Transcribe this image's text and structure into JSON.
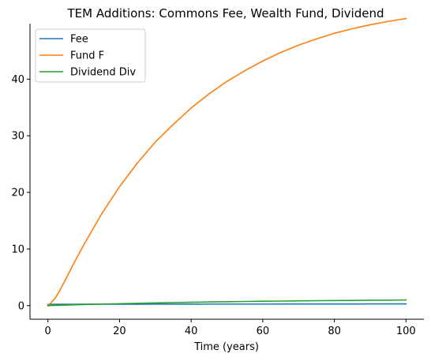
{
  "chart_data": {
    "type": "line",
    "title": "TEM Additions: Commons Fee, Wealth Fund, Dividend",
    "xlabel": "Time (years)",
    "ylabel": "",
    "xlim": [
      -5,
      105
    ],
    "ylim": [
      -2.4,
      49.8
    ],
    "xticks": [
      0,
      20,
      40,
      60,
      80,
      100
    ],
    "yticks": [
      0,
      10,
      20,
      30,
      40
    ],
    "grid": false,
    "legend_position": "top-left",
    "x": [
      0,
      1,
      2,
      3,
      5,
      7.5,
      10,
      15,
      20,
      25,
      30,
      35,
      40,
      45,
      50,
      55,
      60,
      65,
      70,
      75,
      80,
      85,
      90,
      95,
      100
    ],
    "series": [
      {
        "name": "Fee",
        "color": "#1f77b4",
        "values": [
          0.2,
          0.22,
          0.23,
          0.23,
          0.24,
          0.24,
          0.25,
          0.25,
          0.26,
          0.26,
          0.27,
          0.27,
          0.27,
          0.28,
          0.28,
          0.28,
          0.28,
          0.29,
          0.29,
          0.29,
          0.29,
          0.29,
          0.3,
          0.3,
          0.3
        ]
      },
      {
        "name": "Fund F",
        "color": "#ff7f0e",
        "values": [
          0.0,
          0.6,
          1.3,
          2.3,
          4.7,
          7.8,
          10.7,
          16.2,
          21.0,
          25.2,
          28.9,
          32.0,
          34.9,
          37.4,
          39.6,
          41.5,
          43.2,
          44.7,
          46.0,
          47.1,
          48.1,
          48.9,
          49.6,
          50.2,
          50.7
        ]
      },
      {
        "name": "Dividend Div",
        "color": "#2ca02c",
        "values": [
          0.0,
          0.02,
          0.04,
          0.06,
          0.1,
          0.15,
          0.2,
          0.28,
          0.35,
          0.42,
          0.48,
          0.54,
          0.6,
          0.65,
          0.69,
          0.73,
          0.77,
          0.8,
          0.84,
          0.87,
          0.9,
          0.92,
          0.95,
          0.97,
          1.0
        ]
      }
    ]
  }
}
